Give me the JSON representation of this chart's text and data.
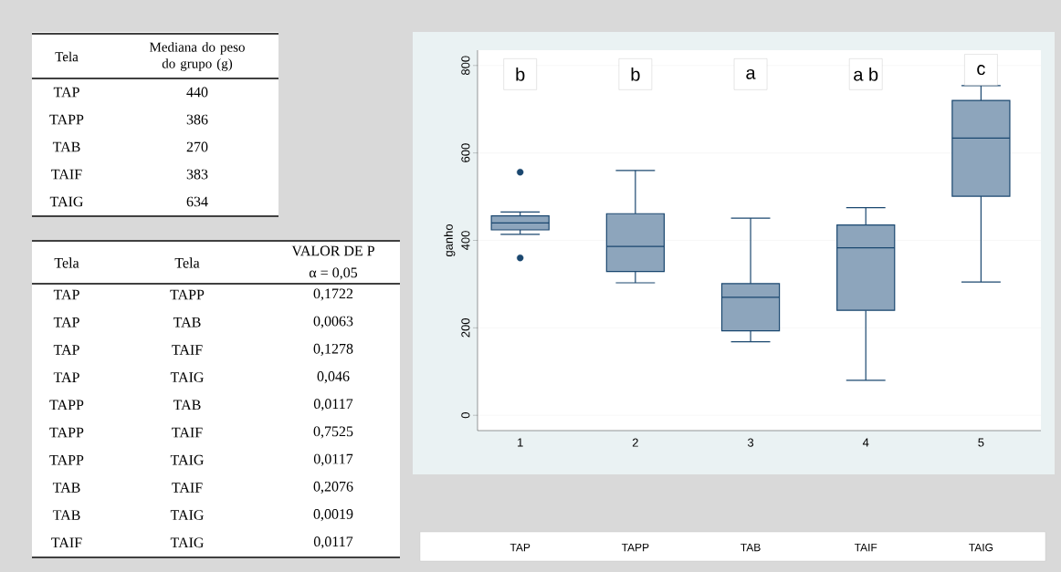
{
  "chart_data": [
    {
      "type": "other",
      "annotations": [
        "Tela",
        "Mediana do peso do grupo (g)"
      ],
      "categories": [
        "TAP",
        "TAPP",
        "TAB",
        "TAIF",
        "TAIG"
      ],
      "values": [
        440,
        386,
        270,
        383,
        634
      ],
      "data_labels": true
    },
    {
      "type": "other",
      "annotations": [
        "Tela",
        "Tela",
        "VALOR DE P",
        "α = 0,05",
        "TAP",
        "TAPP",
        "0,1722",
        "TAP",
        "TAB",
        "0,0063",
        "TAP",
        "TAIF",
        "0,1278",
        "TAP",
        "TAIG",
        "0,046",
        "TAPP",
        "TAB",
        "0,0117",
        "TAPP",
        "TAIF",
        "0,7525",
        "TAPP",
        "TAIG",
        "0,0117",
        "TAB",
        "TAIF",
        "0,2076",
        "TAB",
        "TAIG",
        "0,0019",
        "TAIF",
        "TAIG",
        "0,0117"
      ]
    },
    {
      "type": "box",
      "categories": [
        "1",
        "2",
        "3",
        "4",
        "5"
      ],
      "ylabel": "ganho",
      "ylim": [
        -35,
        835
      ],
      "yticks": [
        0,
        200,
        400,
        600,
        800
      ],
      "grid": "y",
      "series": [
        {
          "color": "#8da5bc",
          "boxes": [
            {
              "low": 414,
              "q1": 424,
              "median": 440,
              "q3": 456,
              "high": 465,
              "outliers": [
                556,
                360
              ]
            },
            {
              "low": 303,
              "q1": 329,
              "median": 386,
              "q3": 461,
              "high": 560
            },
            {
              "low": 168,
              "q1": 193,
              "median": 270,
              "q3": 301,
              "high": 451
            },
            {
              "low": 80,
              "q1": 240,
              "median": 383,
              "q3": 435,
              "high": 475
            },
            {
              "low": 305,
              "q1": 501,
              "median": 634,
              "q3": 720,
              "high": 754
            }
          ]
        }
      ],
      "annotations": [
        {
          "text": "b",
          "x": "1",
          "y": 780
        },
        {
          "text": "b",
          "x": "2",
          "y": 780
        },
        {
          "text": "a",
          "x": "3",
          "y": 780
        },
        {
          "text": "a b",
          "x": "4",
          "y": 780
        },
        {
          "text": "c",
          "x": "5",
          "y": 790
        },
        "TAP",
        "TAPP",
        "TAB",
        "TAIF",
        "TAIG"
      ]
    }
  ]
}
